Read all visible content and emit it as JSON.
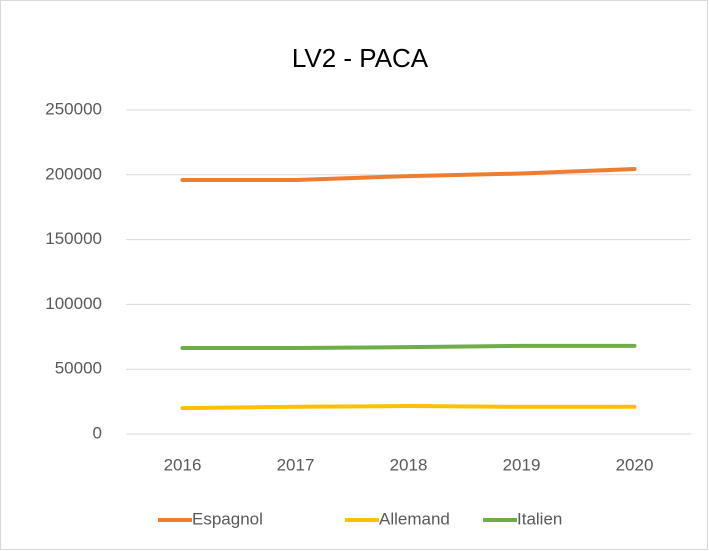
{
  "chart_data": {
    "type": "line",
    "title": "LV2 - PACA",
    "categories": [
      "2016",
      "2017",
      "2018",
      "2019",
      "2020"
    ],
    "series": [
      {
        "name": "Espagnol",
        "color": "#ED7D31",
        "values": [
          196000,
          196000,
          199000,
          201000,
          204500
        ]
      },
      {
        "name": "Allemand",
        "color": "#FFC000",
        "values": [
          20000,
          21000,
          21600,
          21000,
          21000
        ]
      },
      {
        "name": "Italien",
        "color": "#70AD47",
        "values": [
          66400,
          66400,
          67000,
          68000,
          68000
        ]
      }
    ],
    "ylim": [
      0,
      250000
    ],
    "yticks": [
      0,
      50000,
      100000,
      150000,
      200000,
      250000
    ],
    "grid": true,
    "legend": "bottom"
  }
}
